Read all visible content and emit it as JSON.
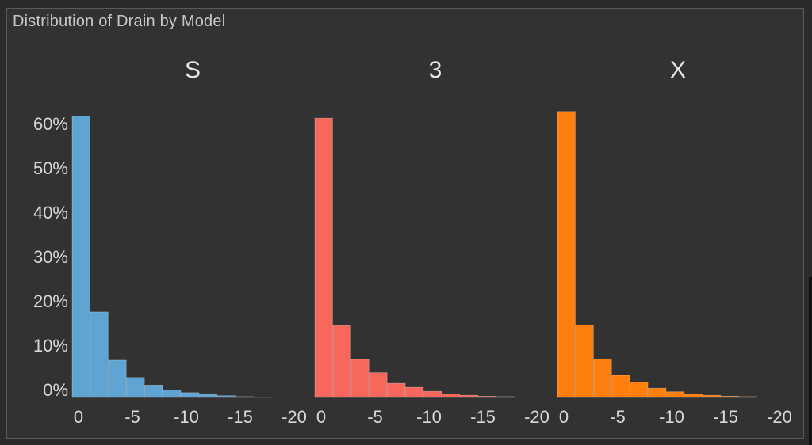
{
  "page": {
    "title": "Distribution of Drain by Model"
  },
  "chart_data": {
    "type": "bar",
    "title": "Distribution of Drain by Model",
    "panels": [
      {
        "name": "S",
        "color": "#5fa4d3",
        "values": [
          63.5,
          19.3,
          8.4,
          4.5,
          2.8,
          1.7,
          1.1,
          0.7,
          0.4,
          0.2,
          0.1
        ]
      },
      {
        "name": "3",
        "color": "#f7675b",
        "values": [
          63.0,
          16.2,
          8.6,
          5.6,
          3.2,
          2.3,
          1.4,
          0.8,
          0.5,
          0.3,
          0.2
        ]
      },
      {
        "name": "X",
        "color": "#ff7f0e",
        "values": [
          64.5,
          16.3,
          8.7,
          5.0,
          3.5,
          2.1,
          1.3,
          0.8,
          0.5,
          0.3,
          0.2
        ]
      }
    ],
    "bin_width": 2,
    "x_range": [
      0,
      -22
    ],
    "x_ticks": [
      "0",
      "-5",
      "-10",
      "-15",
      "-20"
    ],
    "y_ticks": [
      "0%",
      "10%",
      "20%",
      "30%",
      "40%",
      "50%",
      "60%"
    ],
    "y_tick_values": [
      0,
      10,
      20,
      30,
      40,
      50,
      60
    ],
    "ylim": [
      0,
      66
    ],
    "grid": false,
    "legend": "none"
  }
}
